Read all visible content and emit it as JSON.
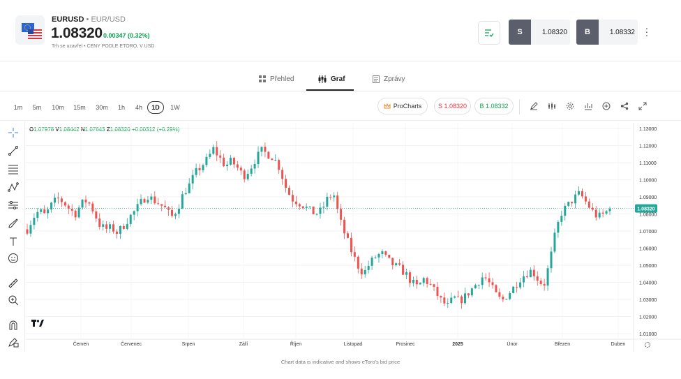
{
  "instrument": {
    "symbol": "EURUSD",
    "separator": "•",
    "pair": "EUR/USD",
    "price": "1.08320",
    "change": "0.00347 (0.32%)",
    "market_status": "Trh se uzavřel",
    "status_sep": "•",
    "price_note": "CENY PODLE ETORO, V USD"
  },
  "trade": {
    "sell_label": "S",
    "sell_price": "1.08320",
    "buy_label": "B",
    "buy_price": "1.08332"
  },
  "tabs": [
    {
      "label": "Přehled",
      "icon": "grid-icon",
      "active": false
    },
    {
      "label": "Graf",
      "icon": "candles-icon",
      "active": true
    },
    {
      "label": "Zprávy",
      "icon": "news-icon",
      "active": false
    }
  ],
  "timeframes": [
    "1m",
    "5m",
    "10m",
    "15m",
    "30m",
    "1h",
    "4h",
    "1D",
    "1W"
  ],
  "active_timeframe": "1D",
  "toolbar": {
    "prochart_label": "ProCharts",
    "sell_pill": "S 1.08320",
    "buy_pill": "B 1.08332",
    "icons": [
      "draw-icon",
      "indicators-icon",
      "settings-icon",
      "compare-icon",
      "add-icon",
      "share-icon",
      "fullscreen-icon"
    ]
  },
  "ohlc": {
    "o_label": "O",
    "o": "1.07978",
    "h_label": "V",
    "h": "1.08442",
    "l_label": "N",
    "l": "1.07643",
    "c_label": "Z",
    "c": "1.08320",
    "change": "+0.00312 (+0.29%)"
  },
  "left_tools": [
    "crosshair-icon",
    "trendline-icon",
    "fib-icon",
    "pattern-icon",
    "prediction-icon",
    "brush-icon",
    "text-icon",
    "emoji-icon",
    "ruler-icon",
    "zoom-icon",
    "magnet-icon",
    "lock-draw-icon"
  ],
  "footer_note": "Chart data is indicative and shows eToro's bid price",
  "colors": {
    "up": "#26a69a",
    "down": "#ef5350",
    "accent_green": "#12a150",
    "accent_red": "#e5323c",
    "label_bg": "#5a5f6b",
    "current_price_bg": "#26a69a"
  },
  "chart_data": {
    "type": "candlestick",
    "y_ticks": [
      "1.13000",
      "1.12000",
      "1.11000",
      "1.10000",
      "1.09000",
      "1.08000",
      "1.07000",
      "1.06000",
      "1.05000",
      "1.04000",
      "1.03000",
      "1.02000",
      "1.01000"
    ],
    "ylim": [
      1.005,
      1.133
    ],
    "x_labels": [
      "Červen",
      "Červenec",
      "Srpen",
      "Září",
      "Říjen",
      "Listopad",
      "Prosinec",
      "2025",
      "Únor",
      "Březen",
      "Duben"
    ],
    "current_price": "1.08320",
    "path": [
      1.071,
      1.078,
      1.082,
      1.079,
      1.085,
      1.089,
      1.087,
      1.083,
      1.08,
      1.086,
      1.088,
      1.082,
      1.074,
      1.071,
      1.072,
      1.069,
      1.073,
      1.078,
      1.082,
      1.087,
      1.091,
      1.088,
      1.086,
      1.083,
      1.078,
      1.083,
      1.092,
      1.097,
      1.104,
      1.108,
      1.112,
      1.118,
      1.113,
      1.108,
      1.111,
      1.107,
      1.102,
      1.106,
      1.112,
      1.117,
      1.115,
      1.113,
      1.107,
      1.096,
      1.089,
      1.087,
      1.085,
      1.082,
      1.08,
      1.082,
      1.089,
      1.092,
      1.077,
      1.067,
      1.058,
      1.05,
      1.045,
      1.051,
      1.055,
      1.057,
      1.053,
      1.05,
      1.048,
      1.045,
      1.04,
      1.037,
      1.042,
      1.039,
      1.034,
      1.029,
      1.026,
      1.031,
      1.029,
      1.032,
      1.036,
      1.04,
      1.044,
      1.039,
      1.033,
      1.029,
      1.033,
      1.037,
      1.042,
      1.045,
      1.047,
      1.042,
      1.038,
      1.052,
      1.07,
      1.081,
      1.085,
      1.089,
      1.092,
      1.087,
      1.082,
      1.078,
      1.08,
      1.083
    ]
  }
}
